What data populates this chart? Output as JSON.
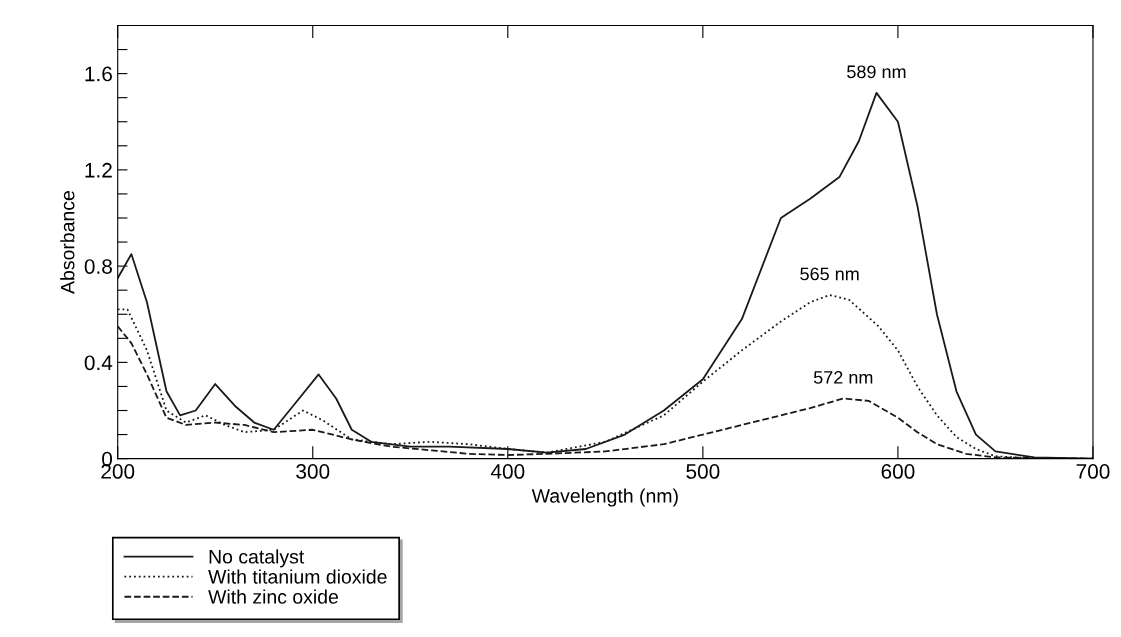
{
  "chart_data": {
    "type": "line",
    "xlabel": "Wavelength (nm)",
    "ylabel": "Absorbance",
    "xlim": [
      200,
      700
    ],
    "xticks": [
      200,
      300,
      400,
      500,
      600,
      700
    ],
    "ylim": [
      0,
      1.8
    ],
    "yticks": [
      0,
      {
        "value": 0.1,
        "label": null
      },
      {
        "value": 0.2,
        "label": null
      },
      {
        "value": 0.3,
        "label": null
      },
      0.4,
      {
        "value": 0.5,
        "label": null
      },
      {
        "value": 0.6,
        "label": null
      },
      {
        "value": 0.7,
        "label": null
      },
      0.8,
      {
        "value": 0.9,
        "label": null
      },
      {
        "value": 1.0,
        "label": null
      },
      {
        "value": 1.1,
        "label": null
      },
      1.2,
      {
        "value": 1.3,
        "label": null
      },
      {
        "value": 1.4,
        "label": null
      },
      {
        "value": 1.5,
        "label": null
      },
      1.6,
      {
        "value": 1.7,
        "label": null
      }
    ],
    "grid": false,
    "legend": "bottom left",
    "marker": "none",
    "series": [
      {
        "name": "No catalyst",
        "color": "#1a1a1a",
        "line_style": "solid",
        "x": [
          200,
          207,
          215,
          225,
          232,
          240,
          250,
          260,
          270,
          280,
          290,
          303,
          312,
          320,
          330,
          350,
          370,
          400,
          420,
          440,
          460,
          480,
          500,
          520,
          540,
          555,
          570,
          580,
          589,
          600,
          610,
          620,
          630,
          640,
          650,
          670,
          700
        ],
        "values": [
          0.75,
          0.85,
          0.65,
          0.28,
          0.18,
          0.2,
          0.31,
          0.22,
          0.15,
          0.12,
          0.22,
          0.35,
          0.25,
          0.12,
          0.07,
          0.05,
          0.05,
          0.04,
          0.025,
          0.04,
          0.1,
          0.2,
          0.33,
          0.58,
          1.0,
          1.08,
          1.17,
          1.32,
          1.52,
          1.4,
          1.05,
          0.6,
          0.28,
          0.1,
          0.03,
          0.005,
          0
        ]
      },
      {
        "name": "With titanium dioxide",
        "color": "#1a1a1a",
        "line_style": "dotted",
        "x": [
          200,
          205,
          215,
          225,
          235,
          245,
          255,
          265,
          280,
          295,
          305,
          320,
          340,
          360,
          380,
          400,
          420,
          450,
          480,
          500,
          520,
          540,
          555,
          565,
          575,
          590,
          600,
          610,
          620,
          630,
          640,
          650,
          670,
          700
        ],
        "values": [
          0.62,
          0.62,
          0.45,
          0.2,
          0.15,
          0.18,
          0.14,
          0.11,
          0.12,
          0.2,
          0.16,
          0.08,
          0.06,
          0.07,
          0.06,
          0.04,
          0.025,
          0.07,
          0.18,
          0.32,
          0.45,
          0.57,
          0.65,
          0.68,
          0.66,
          0.55,
          0.45,
          0.3,
          0.18,
          0.09,
          0.04,
          0.01,
          0,
          0
        ]
      },
      {
        "name": "With zinc oxide",
        "color": "#1a1a1a",
        "line_style": "dashed",
        "x": [
          200,
          207,
          215,
          225,
          235,
          250,
          265,
          280,
          300,
          320,
          340,
          360,
          380,
          400,
          420,
          450,
          480,
          500,
          520,
          540,
          555,
          572,
          585,
          600,
          610,
          620,
          635,
          650,
          700
        ],
        "values": [
          0.55,
          0.48,
          0.35,
          0.17,
          0.14,
          0.15,
          0.14,
          0.11,
          0.12,
          0.08,
          0.05,
          0.035,
          0.02,
          0.015,
          0.02,
          0.03,
          0.06,
          0.1,
          0.14,
          0.18,
          0.21,
          0.25,
          0.24,
          0.17,
          0.11,
          0.06,
          0.02,
          0.005,
          0
        ]
      }
    ],
    "annotations": [
      {
        "text": "589 nm",
        "x": 589,
        "y": 1.52
      },
      {
        "text": "565 nm",
        "x": 565,
        "y": 0.68
      },
      {
        "text": "572 nm",
        "x": 572,
        "y": 0.25
      }
    ]
  }
}
